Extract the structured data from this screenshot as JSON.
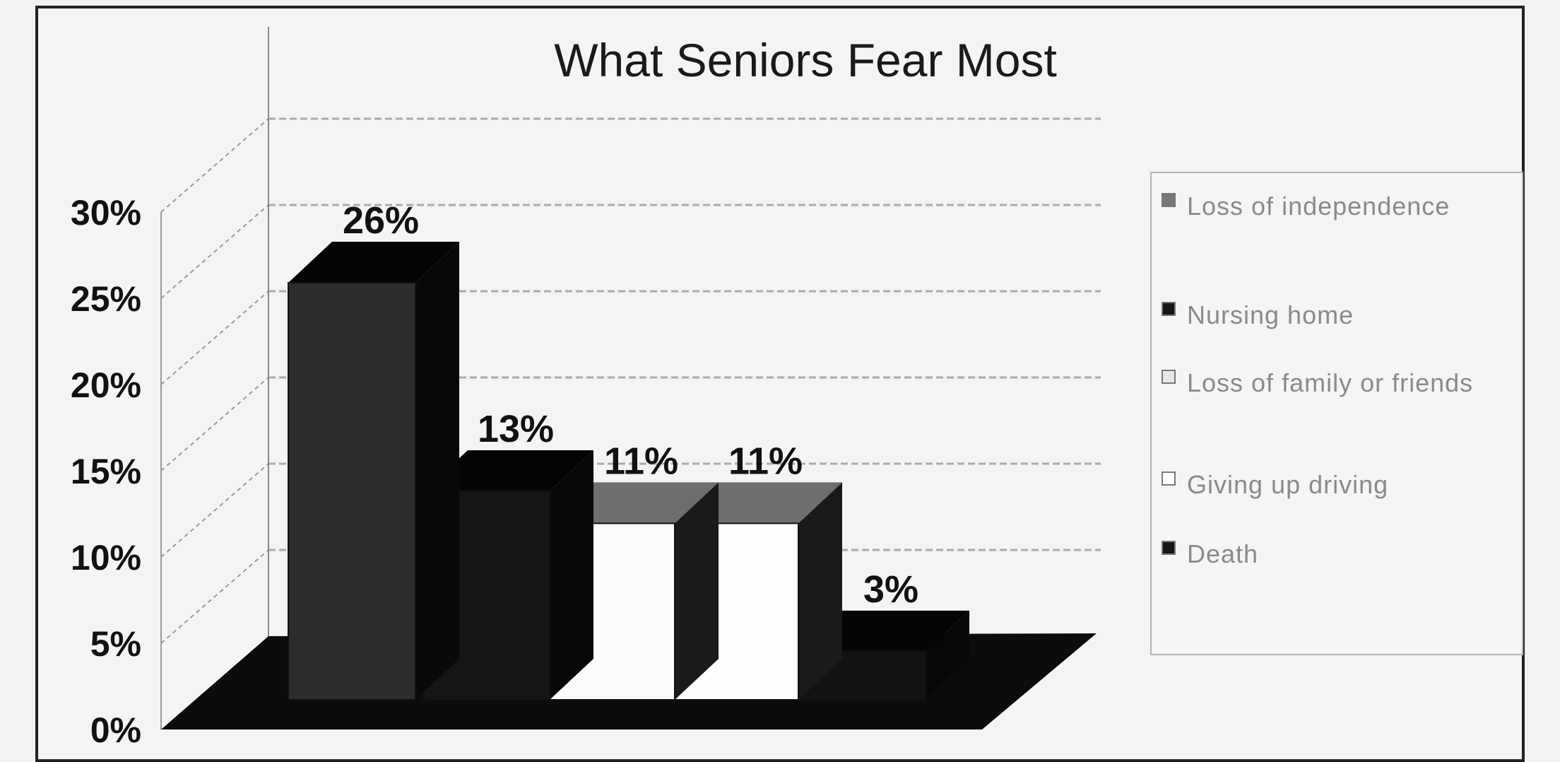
{
  "chart_data": {
    "type": "bar",
    "title": "What Seniors Fear Most",
    "categories": [
      "Loss of independence",
      "Nursing home",
      "Loss of family or friends",
      "Giving up driving",
      "Death"
    ],
    "values": [
      26,
      13,
      11,
      11,
      3
    ],
    "data_labels": [
      "26%",
      "13%",
      "11%",
      "11%",
      "3%"
    ],
    "ylim": [
      0,
      30
    ],
    "yticks": [
      "0%",
      "5%",
      "10%",
      "15%",
      "20%",
      "25%",
      "30%"
    ],
    "grid": true,
    "legend_position": "right",
    "colors": [
      "#2d2d2d",
      "#151515",
      "#fbfbfb",
      "#fdfdfd",
      "#121212"
    ],
    "legend": [
      {
        "label": "Loss of independence",
        "color": "#777777"
      },
      {
        "label": "Nursing home",
        "color": "#151515"
      },
      {
        "label": "Loss of family or friends",
        "color": "#e8e8e8"
      },
      {
        "label": "Giving up driving",
        "color": "#ffffff"
      },
      {
        "label": "Death",
        "color": "#151515"
      }
    ]
  }
}
